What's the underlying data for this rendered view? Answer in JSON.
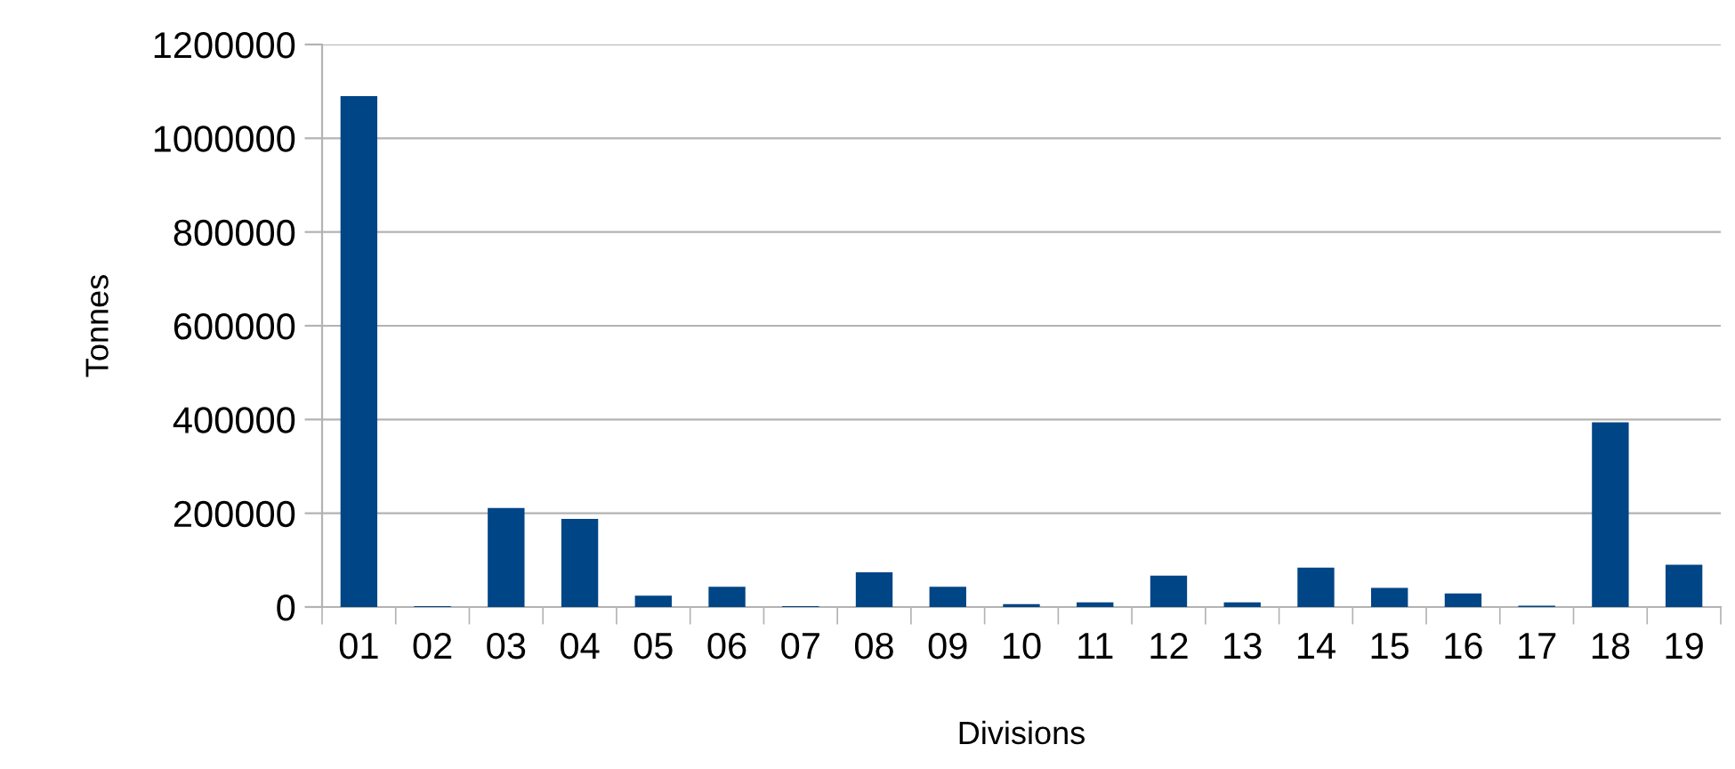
{
  "chart_data": {
    "type": "bar",
    "xlabel": "Divisions",
    "ylabel": "Tonnes",
    "categories": [
      "01",
      "02",
      "03",
      "04",
      "05",
      "06",
      "07",
      "08",
      "09",
      "10",
      "11",
      "12",
      "13",
      "14",
      "15",
      "16",
      "17",
      "18",
      "19"
    ],
    "values": [
      1090000,
      2000,
      211000,
      188000,
      24000,
      43000,
      2000,
      74000,
      43000,
      6000,
      10000,
      67000,
      10000,
      84000,
      41000,
      29000,
      3000,
      394000,
      90000
    ],
    "color": "#004586",
    "ylim": [
      0,
      1200000
    ],
    "yticks": [
      0,
      200000,
      400000,
      600000,
      800000,
      1000000,
      1200000
    ],
    "grid": "y"
  }
}
